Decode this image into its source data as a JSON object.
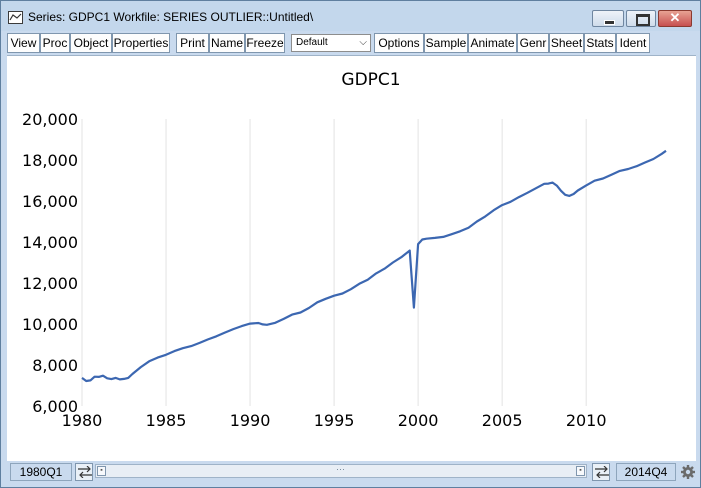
{
  "window": {
    "title": "Series: GDPC1   Workfile: SERIES OUTLIER::Untitled\\",
    "icons": {
      "app": "line-chart-icon",
      "minimize": "minimize-icon",
      "maximize": "maximize-icon",
      "close": "close-icon"
    }
  },
  "toolbar": {
    "left_buttons": [
      "View",
      "Proc",
      "Object",
      "Properties"
    ],
    "mid_buttons": [
      "Print",
      "Name",
      "Freeze"
    ],
    "view_select": "Default",
    "right_buttons": [
      "Options",
      "Sample",
      "Animate",
      "Genr",
      "Sheet",
      "Stats",
      "Ident"
    ]
  },
  "chart_data": {
    "type": "line",
    "title": "GDPC1",
    "xlabel": "",
    "ylabel": "",
    "x_ticks": [
      "1980",
      "1985",
      "1990",
      "1995",
      "2000",
      "2005",
      "2010"
    ],
    "y_ticks": [
      "6,000",
      "8,000",
      "10,000",
      "12,000",
      "14,000",
      "16,000",
      "18,000",
      "20,000"
    ],
    "xlim": [
      1980.0,
      2014.75
    ],
    "ylim": [
      6000,
      20000
    ],
    "grid": "vertical",
    "line_color": "#3c67b1",
    "series": [
      {
        "x": [
          1980.0,
          1980.25,
          1980.5,
          1980.75,
          1981.0,
          1981.25,
          1981.5,
          1981.75,
          1982.0,
          1982.25,
          1982.5,
          1982.75,
          1983.0,
          1983.5,
          1984.0,
          1984.5,
          1985.0,
          1985.5,
          1986.0,
          1986.5,
          1987.0,
          1987.5,
          1988.0,
          1988.5,
          1989.0,
          1989.5,
          1990.0,
          1990.5,
          1990.75,
          1991.0,
          1991.5,
          1992.0,
          1992.5,
          1993.0,
          1993.5,
          1994.0,
          1994.5,
          1995.0,
          1995.5,
          1996.0,
          1996.5,
          1997.0,
          1997.5,
          1998.0,
          1998.5,
          1999.0,
          1999.5,
          1999.75,
          2000.0,
          2000.25,
          2000.5,
          2001.0,
          2001.5,
          2002.0,
          2002.5,
          2003.0,
          2003.5,
          2004.0,
          2004.5,
          2005.0,
          2005.5,
          2006.0,
          2006.5,
          2007.0,
          2007.5,
          2007.75,
          2008.0,
          2008.25,
          2008.5,
          2008.75,
          2009.0,
          2009.25,
          2009.5,
          2010.0,
          2010.5,
          2011.0,
          2011.5,
          2012.0,
          2012.5,
          2013.0,
          2013.5,
          2014.0,
          2014.5,
          2014.75
        ],
        "y": [
          7370,
          7220,
          7250,
          7430,
          7420,
          7480,
          7350,
          7310,
          7370,
          7300,
          7320,
          7370,
          7560,
          7900,
          8180,
          8360,
          8500,
          8680,
          8820,
          8920,
          9080,
          9250,
          9400,
          9580,
          9750,
          9900,
          10020,
          10050,
          9980,
          9960,
          10060,
          10250,
          10460,
          10560,
          10780,
          11060,
          11230,
          11380,
          11490,
          11700,
          11960,
          12160,
          12470,
          12700,
          13000,
          13260,
          13580,
          10800,
          13900,
          14120,
          14160,
          14200,
          14250,
          14380,
          14520,
          14700,
          15000,
          15250,
          15550,
          15800,
          15960,
          16190,
          16400,
          16620,
          16840,
          16850,
          16900,
          16750,
          16500,
          16300,
          16250,
          16340,
          16510,
          16760,
          16990,
          17100,
          17280,
          17470,
          17560,
          17700,
          17880,
          18050,
          18300,
          18450
        ]
      }
    ]
  },
  "status": {
    "start": "1980Q1",
    "end": "2014Q4",
    "scroll_mid": "···",
    "icons": {
      "left_arrows": "double-arrow-icon",
      "right_arrows": "double-arrow-icon",
      "settings": "gear-icon"
    }
  }
}
